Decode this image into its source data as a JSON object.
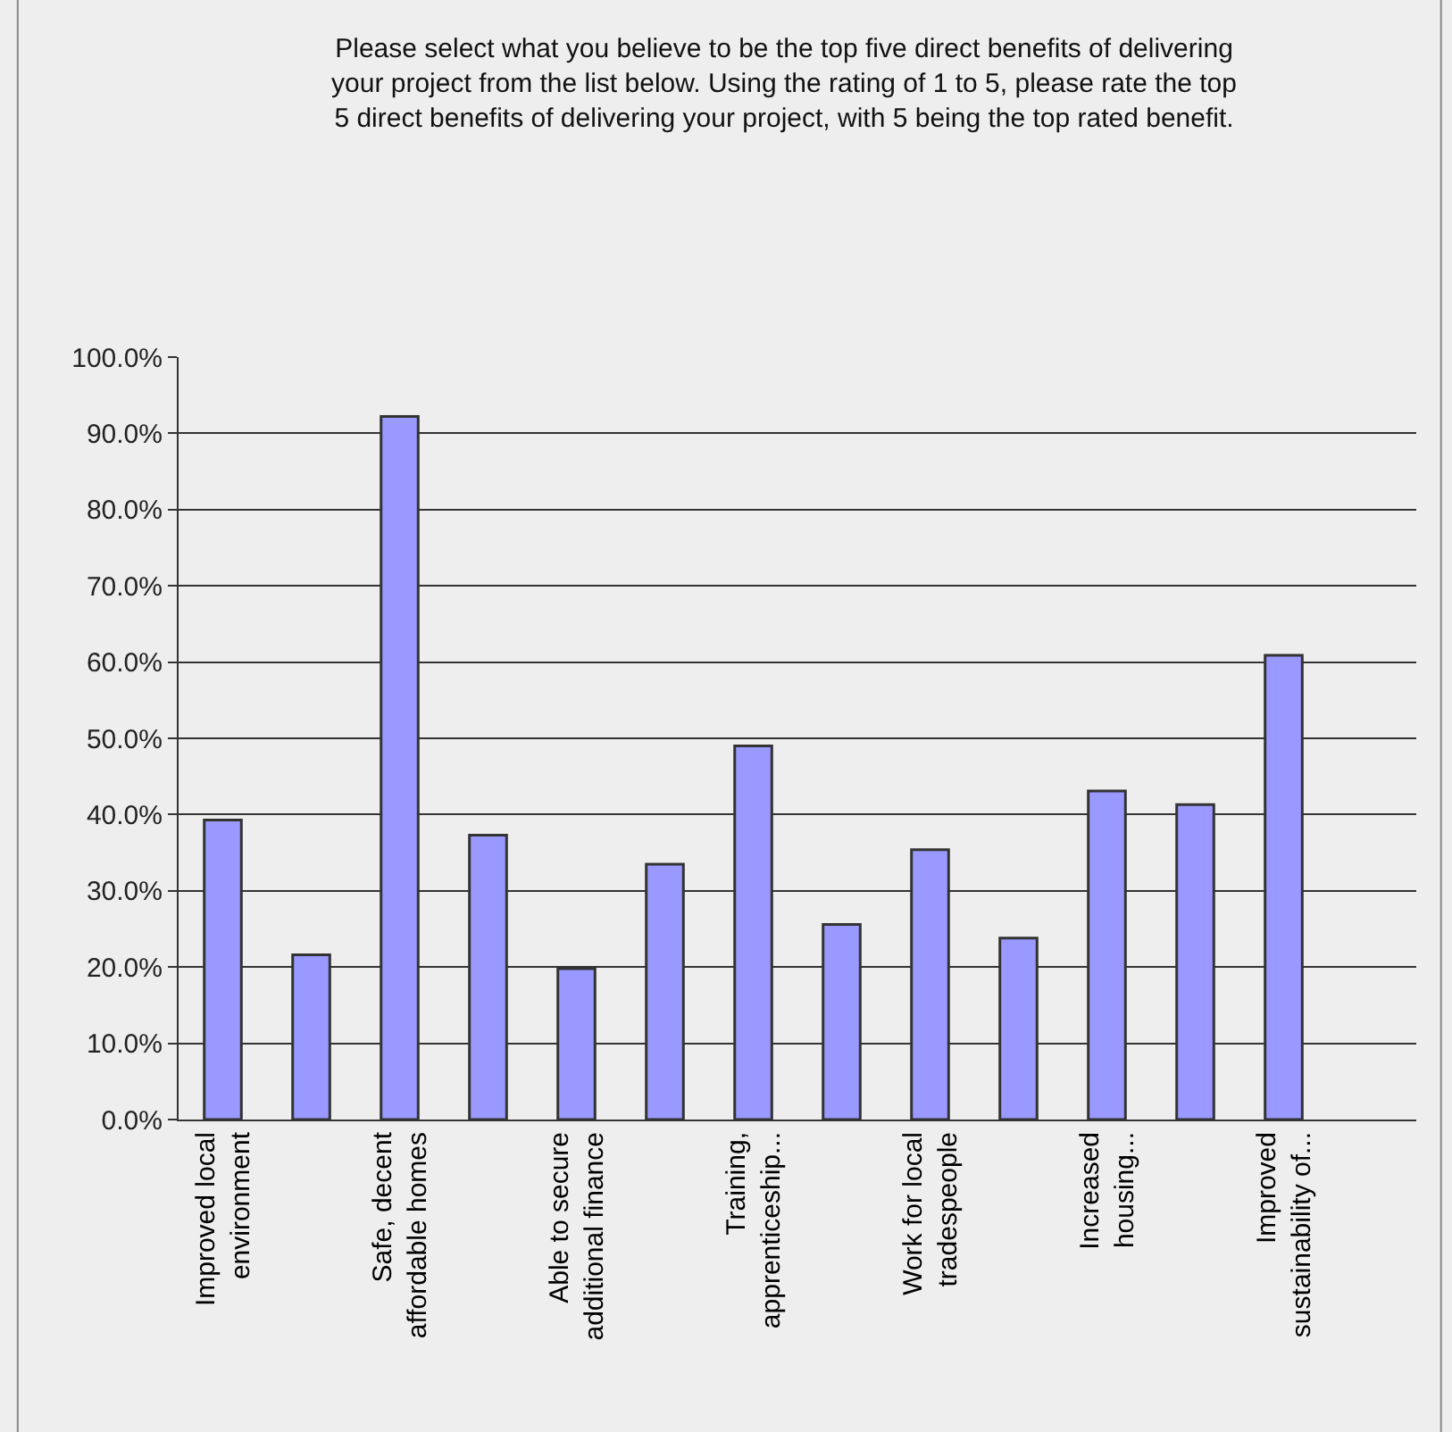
{
  "chart_data": {
    "type": "bar",
    "title": "Please select what you believe to be the top five direct benefits of delivering\nyour project from the list below. Using the rating of 1 to 5, please rate the top\n5 direct benefits of delivering your project, with 5 being the top rated benefit.",
    "categories": [
      "Improved local\nenvironment",
      null,
      "Safe, decent\naffordable homes",
      null,
      "Able to secure\nadditional finance",
      null,
      "Training,\napprenticeship...",
      null,
      "Work for local\ntradespeople",
      null,
      "Increased\nhousing...",
      null,
      "Improved\nsustainability of...",
      null
    ],
    "values": [
      39.3,
      21.6,
      92.2,
      37.3,
      19.8,
      33.5,
      49.0,
      25.6,
      35.4,
      23.8,
      43.1,
      41.3,
      60.9,
      null
    ],
    "color": "#9999ff",
    "ylim": [
      0,
      100
    ],
    "yticks": [
      {
        "value": 0,
        "label": "0.0%"
      },
      {
        "value": 10,
        "label": "10.0%"
      },
      {
        "value": 20,
        "label": "20.0%"
      },
      {
        "value": 30,
        "label": "30.0%"
      },
      {
        "value": 40,
        "label": "40.0%"
      },
      {
        "value": 50,
        "label": "50.0%"
      },
      {
        "value": 60,
        "label": "60.0%"
      },
      {
        "value": 70,
        "label": "70.0%"
      },
      {
        "value": 80,
        "label": "80.0%"
      },
      {
        "value": 90,
        "label": "90.0%"
      },
      {
        "value": 100,
        "label": "100.0%"
      }
    ],
    "grid": "y",
    "legend": false
  }
}
